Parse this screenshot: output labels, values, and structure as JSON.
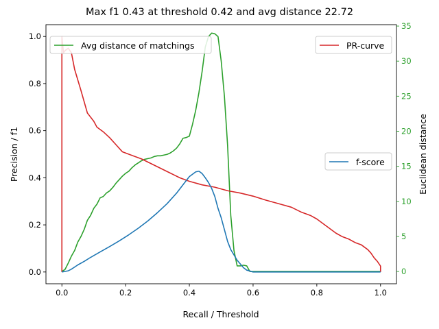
{
  "chart_data": {
    "type": "line",
    "title": "Max f1 0.43 at threshold 0.42 and avg distance 22.72",
    "xlabel": "Recall / Threshold",
    "ylabel": "Precision / f1",
    "y2label": "Euclidean distance",
    "xlim": [
      -0.05,
      1.05
    ],
    "ylim": [
      -0.05,
      1.05
    ],
    "y2lim": [
      -1.75,
      35.2
    ],
    "xticks": [
      0.0,
      0.2,
      0.4,
      0.6,
      0.8,
      1.0
    ],
    "xtick_labels": [
      "0.0",
      "0.2",
      "0.4",
      "0.6",
      "0.8",
      "1.0"
    ],
    "yticks": [
      0.0,
      0.2,
      0.4,
      0.6,
      0.8,
      1.0
    ],
    "ytick_labels": [
      "0.0",
      "0.2",
      "0.4",
      "0.6",
      "0.8",
      "1.0"
    ],
    "y2ticks": [
      0,
      5,
      10,
      15,
      20,
      25,
      30,
      35
    ],
    "y2tick_labels": [
      "0",
      "5",
      "10",
      "15",
      "20",
      "25",
      "30",
      "35"
    ],
    "grid": false,
    "colors": {
      "pr": "#d62728",
      "f1": "#1f77b4",
      "dist": "#2ca02c",
      "axis": "#000000"
    },
    "series": [
      {
        "name": "PR-curve",
        "axis": "left",
        "legend": "top-right",
        "color": "#d62728",
        "x": [
          0.0,
          0.0,
          0.005,
          0.01,
          0.02,
          0.03,
          0.04,
          0.06,
          0.08,
          0.1,
          0.11,
          0.13,
          0.15,
          0.17,
          0.19,
          0.22,
          0.25,
          0.28,
          0.31,
          0.34,
          0.37,
          0.4,
          0.44,
          0.48,
          0.52,
          0.56,
          0.6,
          0.64,
          0.68,
          0.72,
          0.75,
          0.78,
          0.8,
          0.82,
          0.84,
          0.86,
          0.88,
          0.9,
          0.92,
          0.94,
          0.96,
          0.97,
          0.98,
          0.99,
          1.0,
          1.0
        ],
        "y": [
          0.0,
          1.0,
          0.93,
          0.94,
          0.95,
          0.93,
          0.86,
          0.77,
          0.675,
          0.64,
          0.615,
          0.595,
          0.57,
          0.54,
          0.51,
          0.495,
          0.48,
          0.46,
          0.44,
          0.42,
          0.4,
          0.385,
          0.37,
          0.36,
          0.345,
          0.335,
          0.322,
          0.305,
          0.29,
          0.275,
          0.255,
          0.24,
          0.225,
          0.205,
          0.185,
          0.165,
          0.15,
          0.14,
          0.125,
          0.115,
          0.095,
          0.08,
          0.06,
          0.045,
          0.025,
          0.0
        ]
      },
      {
        "name": "f-score",
        "axis": "left",
        "legend": "center-right",
        "color": "#1f77b4",
        "x": [
          0.0,
          0.02,
          0.03,
          0.05,
          0.07,
          0.09,
          0.12,
          0.15,
          0.18,
          0.21,
          0.24,
          0.27,
          0.3,
          0.33,
          0.36,
          0.38,
          0.4,
          0.42,
          0.43,
          0.44,
          0.45,
          0.46,
          0.47,
          0.48,
          0.49,
          0.5,
          0.51,
          0.52,
          0.53,
          0.55,
          0.57,
          0.58,
          0.59,
          0.6,
          0.7,
          0.8,
          0.9,
          1.0
        ],
        "y": [
          0.0,
          0.005,
          0.012,
          0.03,
          0.045,
          0.062,
          0.085,
          0.108,
          0.132,
          0.158,
          0.186,
          0.217,
          0.252,
          0.29,
          0.335,
          0.37,
          0.405,
          0.425,
          0.428,
          0.418,
          0.4,
          0.38,
          0.355,
          0.32,
          0.27,
          0.23,
          0.18,
          0.13,
          0.095,
          0.05,
          0.018,
          0.008,
          0.004,
          0.0,
          0.0,
          0.0,
          0.0,
          0.0
        ]
      },
      {
        "name": "Avg distance of matchings",
        "axis": "right",
        "legend": "top-left",
        "color": "#2ca02c",
        "x": [
          0.0,
          0.01,
          0.02,
          0.03,
          0.04,
          0.05,
          0.06,
          0.07,
          0.08,
          0.09,
          0.1,
          0.11,
          0.12,
          0.13,
          0.14,
          0.15,
          0.16,
          0.17,
          0.18,
          0.19,
          0.2,
          0.21,
          0.22,
          0.23,
          0.24,
          0.25,
          0.26,
          0.27,
          0.28,
          0.29,
          0.3,
          0.31,
          0.32,
          0.33,
          0.34,
          0.35,
          0.36,
          0.37,
          0.38,
          0.39,
          0.4,
          0.41,
          0.42,
          0.43,
          0.44,
          0.45,
          0.46,
          0.47,
          0.48,
          0.49,
          0.5,
          0.51,
          0.52,
          0.53,
          0.54,
          0.55,
          0.56,
          0.57,
          0.58,
          0.59,
          0.6,
          0.7,
          0.8,
          0.9,
          1.0
        ],
        "y": [
          0.0,
          0.3,
          1.2,
          2.2,
          3.0,
          4.2,
          5.0,
          6.0,
          7.3,
          8.0,
          9.0,
          9.6,
          10.5,
          10.7,
          11.2,
          11.5,
          12.0,
          12.6,
          13.1,
          13.6,
          14.0,
          14.3,
          14.8,
          15.2,
          15.5,
          15.8,
          16.0,
          16.1,
          16.2,
          16.4,
          16.5,
          16.5,
          16.6,
          16.7,
          16.9,
          17.2,
          17.6,
          18.2,
          19.0,
          19.1,
          19.3,
          21.0,
          23.0,
          25.5,
          28.5,
          32.0,
          33.5,
          34.0,
          33.9,
          33.5,
          30.0,
          25.0,
          18.0,
          8.0,
          3.0,
          0.8,
          0.8,
          0.9,
          0.8,
          0.0,
          0.0,
          0.0,
          0.0,
          0.0,
          0.0
        ]
      }
    ]
  }
}
